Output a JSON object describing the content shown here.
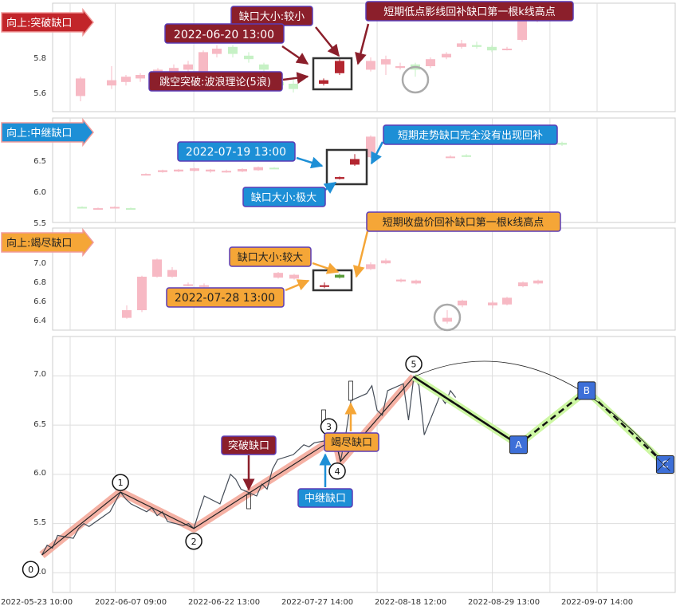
{
  "x_axis": {
    "tick_labels": [
      "2022-05-23 10:00",
      "2022-06-07 09:00",
      "2022-06-22 13:00",
      "2022-07-27 14:00",
      "2022-08-18 12:00",
      "2022-08-29 13:00",
      "2022-09-07 14:00"
    ]
  },
  "colors": {
    "up_candle": "#f7b9c4",
    "down_candle": "#c6f1c5",
    "gap_up_candle": "#b32630",
    "gap_down_candle": "#5b9e3b",
    "breakaway": "#c2252a",
    "runaway": "#1d8fd6",
    "exhaustion": "#f5a637",
    "callout_dark": "#8b1f2b",
    "wave_fill": "#f4a89a",
    "projection_fill": "#cdf7a3",
    "marker_blue": "#3d6fd8"
  },
  "panels": [
    {
      "id": "breakaway",
      "tag": "向上:突破缺口",
      "yticks": [
        "5.6",
        "5.8"
      ],
      "callouts": {
        "size": "缺口大小:较小",
        "date": "2022-06-20 13:00",
        "theory": "跳空突破:波浪理论(5浪)",
        "fill": "短期低点影线回补缺口第一根k线高点"
      }
    },
    {
      "id": "runaway",
      "tag": "向上:中继缺口",
      "yticks": [
        "5.5",
        "6.0",
        "6.5"
      ],
      "callouts": {
        "date": "2022-07-19 13:00",
        "size": "缺口大小:极大",
        "fill": "短期走势缺口完全没有出现回补"
      }
    },
    {
      "id": "exhaustion",
      "tag": "向上:竭尽缺口",
      "yticks": [
        "6.4",
        "6.6",
        "6.8",
        "7.0"
      ],
      "callouts": {
        "size": "缺口大小:较大",
        "date": "2022-07-28 13:00",
        "fill": "短期收盘价回补缺口第一根k线高点"
      }
    }
  ],
  "chart_data": {
    "type": "line",
    "yticks": [
      "5.0",
      "5.5",
      "6.0",
      "6.5",
      "7.0"
    ],
    "ylim": [
      4.8,
      7.4
    ],
    "wave_points": [
      {
        "label": "0",
        "date": "2022-05-24",
        "price": 5.18
      },
      {
        "label": "1",
        "date": "2022-06-08",
        "price": 5.82
      },
      {
        "label": "2",
        "date": "2022-06-22",
        "price": 5.45
      },
      {
        "label": "3",
        "date": "2022-07-19",
        "price": 6.37
      },
      {
        "label": "4",
        "date": "2022-07-20",
        "price": 6.13
      },
      {
        "label": "5",
        "date": "2022-08-03",
        "price": 6.99
      }
    ],
    "projection_points": [
      {
        "label": "A",
        "date": "2022-08-23",
        "price": 6.3
      },
      {
        "label": "B",
        "date": "2022-09-05",
        "price": 6.85
      },
      {
        "label": "C",
        "date": "2022-09-20",
        "price": 6.1
      }
    ],
    "gap_labels": [
      {
        "label": "突破缺口",
        "date": "2022-06-20",
        "price": 5.7
      },
      {
        "label": "中继缺口",
        "date": "2022-07-19",
        "price": 6.2
      },
      {
        "label": "竭尽缺口",
        "date": "2022-07-28",
        "price": 6.8
      }
    ],
    "price_series": [
      [
        "2022-05-24",
        5.18
      ],
      [
        "2022-05-25",
        5.28
      ],
      [
        "2022-05-26",
        5.25
      ],
      [
        "2022-05-27",
        5.38
      ],
      [
        "2022-05-30",
        5.35
      ],
      [
        "2022-05-31",
        5.45
      ],
      [
        "2022-06-01",
        5.5
      ],
      [
        "2022-06-02",
        5.47
      ],
      [
        "2022-06-06",
        5.62
      ],
      [
        "2022-06-07",
        5.72
      ],
      [
        "2022-06-08",
        5.82
      ],
      [
        "2022-06-09",
        5.75
      ],
      [
        "2022-06-10",
        5.7
      ],
      [
        "2022-06-13",
        5.62
      ],
      [
        "2022-06-14",
        5.66
      ],
      [
        "2022-06-15",
        5.58
      ],
      [
        "2022-06-16",
        5.62
      ],
      [
        "2022-06-17",
        5.52
      ],
      [
        "2022-06-20",
        5.48
      ],
      [
        "2022-06-21",
        5.5
      ],
      [
        "2022-06-22",
        5.45
      ],
      [
        "2022-06-23",
        5.62
      ],
      [
        "2022-06-24",
        5.78
      ],
      [
        "2022-06-27",
        5.7
      ],
      [
        "2022-06-28",
        5.85
      ],
      [
        "2022-06-29",
        6.0
      ],
      [
        "2022-06-30",
        5.95
      ],
      [
        "2022-07-01",
        5.85
      ],
      [
        "2022-07-04",
        5.78
      ],
      [
        "2022-07-05",
        5.9
      ],
      [
        "2022-07-06",
        5.85
      ],
      [
        "2022-07-07",
        6.05
      ],
      [
        "2022-07-08",
        6.15
      ],
      [
        "2022-07-11",
        6.2
      ],
      [
        "2022-07-12",
        6.25
      ],
      [
        "2022-07-13",
        6.3
      ],
      [
        "2022-07-14",
        6.28
      ],
      [
        "2022-07-15",
        6.32
      ],
      [
        "2022-07-18",
        6.35
      ],
      [
        "2022-07-19",
        6.37
      ],
      [
        "2022-07-20",
        6.13
      ],
      [
        "2022-07-21",
        6.4
      ],
      [
        "2022-07-22",
        6.75
      ],
      [
        "2022-07-25",
        6.82
      ],
      [
        "2022-07-26",
        6.9
      ],
      [
        "2022-07-27",
        6.65
      ],
      [
        "2022-07-28",
        6.6
      ],
      [
        "2022-07-29",
        6.85
      ],
      [
        "2022-08-01",
        6.92
      ],
      [
        "2022-08-02",
        6.55
      ],
      [
        "2022-08-03",
        6.99
      ],
      [
        "2022-08-04",
        6.9
      ],
      [
        "2022-08-05",
        6.4
      ],
      [
        "2022-08-08",
        6.8
      ],
      [
        "2022-08-09",
        6.72
      ],
      [
        "2022-08-10",
        6.85
      ],
      [
        "2022-08-11",
        6.78
      ]
    ]
  }
}
